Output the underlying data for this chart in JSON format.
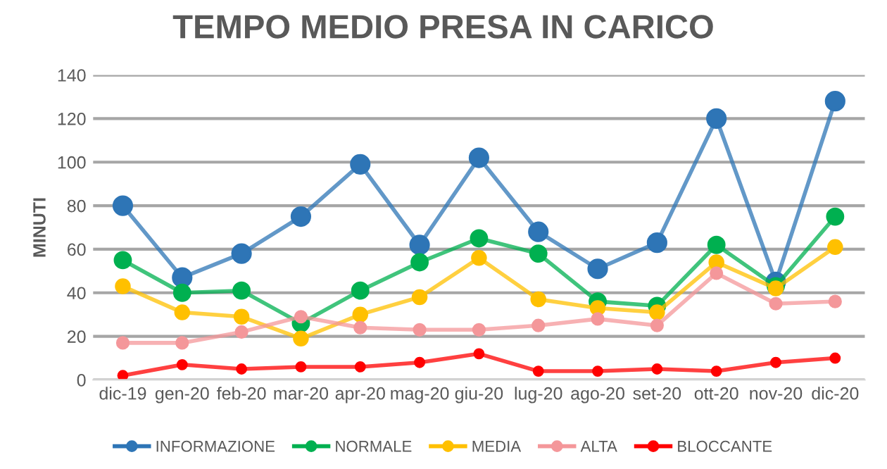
{
  "chart_data": {
    "type": "line",
    "title": "TEMPO MEDIO PRESA IN CARICO",
    "ylabel": "MINUTI",
    "categories": [
      "dic-19",
      "gen-20",
      "feb-20",
      "mar-20",
      "apr-20",
      "mag-20",
      "giu-20",
      "lug-20",
      "ago-20",
      "set-20",
      "ott-20",
      "nov-20",
      "dic-20"
    ],
    "series": [
      {
        "name": "INFORMAZIONE",
        "color": "#2e75b6",
        "values": [
          80,
          47,
          58,
          75,
          99,
          62,
          102,
          68,
          51,
          63,
          120,
          45,
          128
        ]
      },
      {
        "name": "NORMALE",
        "color": "#00b050",
        "values": [
          55,
          40,
          41,
          26,
          41,
          54,
          65,
          58,
          36,
          34,
          62,
          43,
          75
        ]
      },
      {
        "name": "MEDIA",
        "color": "#ffc000",
        "values": [
          43,
          31,
          29,
          19,
          30,
          38,
          56,
          37,
          33,
          31,
          54,
          42,
          61
        ]
      },
      {
        "name": "ALTA",
        "color": "#f4979a",
        "values": [
          17,
          17,
          22,
          29,
          24,
          23,
          23,
          25,
          28,
          25,
          49,
          35,
          36
        ]
      },
      {
        "name": "BLOCCANTE",
        "color": "#ff0000",
        "values": [
          2,
          7,
          5,
          6,
          6,
          8,
          12,
          4,
          4,
          5,
          4,
          8,
          10
        ]
      }
    ],
    "ylim": [
      0,
      140
    ],
    "yticks": [
      0,
      20,
      40,
      60,
      80,
      100,
      120,
      140
    ],
    "grid": "y",
    "legend": "bottom",
    "marker": "circle",
    "line_style": "solid"
  }
}
